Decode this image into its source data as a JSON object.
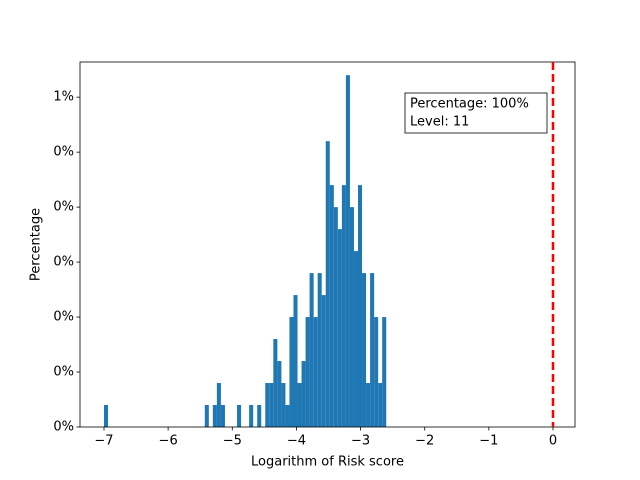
{
  "chart_data": {
    "type": "histogram",
    "xlabel": "Logarithm of Risk score",
    "ylabel": "Percentage",
    "bins": [
      -7.0,
      -6.9371,
      -6.8743,
      -6.8114,
      -6.7486,
      -6.6857,
      -6.6229,
      -6.56,
      -6.4971,
      -6.4343,
      -6.3714,
      -6.3086,
      -6.2457,
      -6.1829,
      -6.12,
      -6.0571,
      -5.9943,
      -5.9314,
      -5.8686,
      -5.8057,
      -5.7429,
      -5.68,
      -5.6171,
      -5.5543,
      -5.4914,
      -5.4286,
      -5.3657,
      -5.3029,
      -5.24,
      -5.1771,
      -5.1143,
      -5.0514,
      -4.9886,
      -4.9257,
      -4.8629,
      -4.8,
      -4.7371,
      -4.6743,
      -4.6114,
      -4.5486,
      -4.4857,
      -4.4229,
      -4.36,
      -4.2971,
      -4.2343,
      -4.1714,
      -4.1086,
      -4.0457,
      -3.9829,
      -3.92,
      -3.8571,
      -3.7943,
      -3.7314,
      -3.6686,
      -3.6057,
      -3.5429,
      -3.48,
      -3.4171,
      -3.3543,
      -3.2914,
      -3.2286,
      -3.1657,
      -3.1029,
      -3.04,
      -2.9771,
      -2.9143,
      -2.8514,
      -2.7886,
      -2.7257,
      -2.6629,
      -2.6
    ],
    "values": [
      0.0004,
      0,
      0,
      0,
      0,
      0,
      0,
      0,
      0,
      0,
      0,
      0,
      0,
      0,
      0,
      0,
      0,
      0,
      0,
      0,
      0,
      0,
      0,
      0,
      0,
      0.0004,
      0,
      0.0004,
      0.0008,
      0.0004,
      0,
      0,
      0,
      0.0004,
      0,
      0,
      0.0004,
      0,
      0.0004,
      0,
      0.0008,
      0.0008,
      0.0016,
      0.0012,
      0.0008,
      0.0004,
      0.002,
      0.0024,
      0.0008,
      0.0012,
      0.002,
      0.0028,
      0.002,
      0.0028,
      0.0024,
      0.0052,
      0.0044,
      0.004,
      0.0036,
      0.0044,
      0.0064,
      0.004,
      0.0032,
      0.0044,
      0.0028,
      0.0008,
      0.0028,
      0.002,
      0.0008,
      0.002
    ],
    "color": "#1f77b4",
    "xlim": [
      -7.374,
      0.343
    ],
    "xticks": [
      {
        "value": -7,
        "label": "−7"
      },
      {
        "value": -6,
        "label": "−6"
      },
      {
        "value": -5,
        "label": "−5"
      },
      {
        "value": -4,
        "label": "−4"
      },
      {
        "value": -3,
        "label": "−3"
      },
      {
        "value": -2,
        "label": "−2"
      },
      {
        "value": -1,
        "label": "−1"
      },
      0
    ],
    "ylim": [
      0,
      0.00664
    ],
    "yticks": [
      {
        "value": 0,
        "label": "0%"
      },
      {
        "value": 0.001,
        "label": "0%"
      },
      {
        "value": 0.002,
        "label": "0%"
      },
      {
        "value": 0.003,
        "label": "0%"
      },
      {
        "value": 0.004,
        "label": "0%"
      },
      {
        "value": 0.005,
        "label": "0%"
      },
      {
        "value": 0.006,
        "label": "1%"
      }
    ],
    "vline": 0,
    "vline_color": "#ff0000",
    "annotation": [
      "Percentage: 100%",
      "Level: 11"
    ]
  }
}
